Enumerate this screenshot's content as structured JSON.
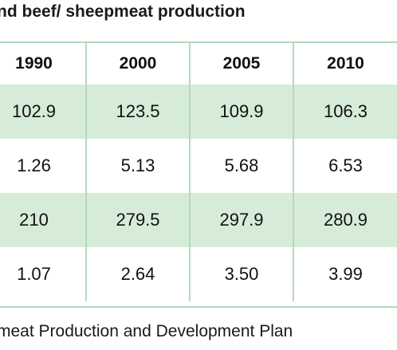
{
  "title": "nd beef/ sheepmeat production",
  "source_note": "meat Production and Development Plan",
  "colors": {
    "shade": "#d6ecd9",
    "rule": "#b5d9bd"
  },
  "chart_data": {
    "type": "table",
    "title": "nd beef/ sheepmeat production",
    "columns": [
      "1990",
      "2000",
      "2005",
      "2010"
    ],
    "rows": [
      [
        "102.9",
        "123.5",
        "109.9",
        "106.3"
      ],
      [
        "1.26",
        "5.13",
        "5.68",
        "6.53"
      ],
      [
        "210",
        "279.5",
        "297.9",
        "280.9"
      ],
      [
        "1.07",
        "2.64",
        "3.50",
        "3.99"
      ]
    ],
    "shaded_rows": [
      0,
      2
    ]
  }
}
